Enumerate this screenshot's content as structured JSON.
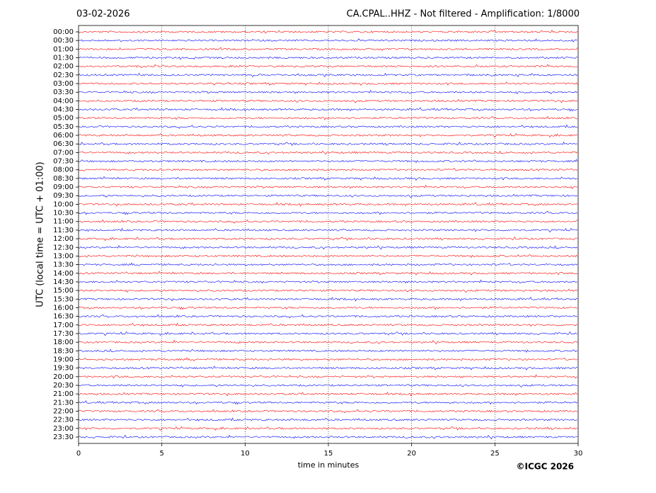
{
  "chart_data": {
    "type": "helicorder",
    "date": "03-02-2026",
    "title": "CA.CPAL..HHZ - Not filtered - Amplification: 1/8000",
    "ylabel": "UTC (local time = UTC + 01:00)",
    "xlabel": "time in minutes",
    "copyright": "©ICGC 2026",
    "categories": [
      "00:00",
      "00:30",
      "01:00",
      "01:30",
      "02:00",
      "02:30",
      "03:00",
      "03:30",
      "04:00",
      "04:30",
      "05:00",
      "05:30",
      "06:00",
      "06:30",
      "07:00",
      "07:30",
      "08:00",
      "08:30",
      "09:00",
      "09:30",
      "10:00",
      "10:30",
      "11:00",
      "11:30",
      "12:00",
      "12:30",
      "13:00",
      "13:30",
      "14:00",
      "14:30",
      "15:00",
      "15:30",
      "16:00",
      "16:30",
      "17:00",
      "17:30",
      "18:00",
      "18:30",
      "19:00",
      "19:30",
      "20:00",
      "20:30",
      "21:00",
      "21:30",
      "22:00",
      "22:30",
      "23:00",
      "23:30"
    ],
    "trace_colors": [
      "#ff0000",
      "#0000ff"
    ],
    "xlim": [
      0,
      30
    ],
    "xticks": [
      0,
      5,
      10,
      15,
      20,
      25,
      30
    ],
    "grid": true
  }
}
